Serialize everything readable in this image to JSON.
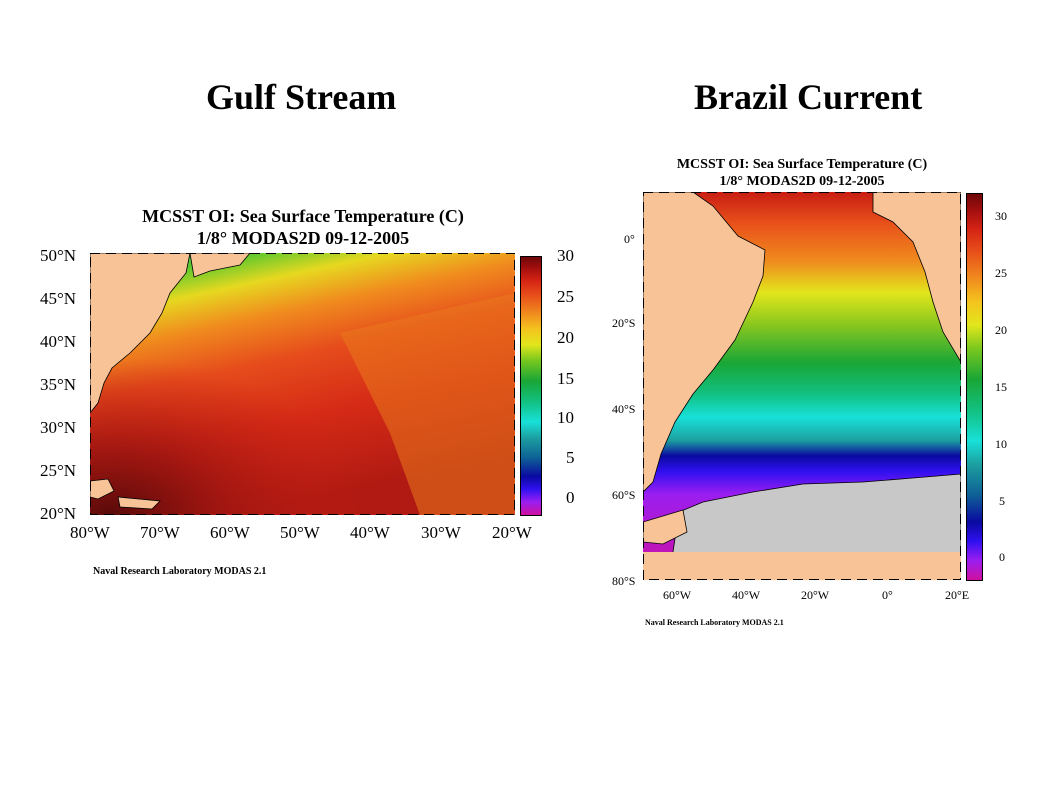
{
  "slide": {
    "title_left": "Gulf Stream",
    "title_right": "Brazil Current"
  },
  "gulf_stream": {
    "title_line1": "MCSST OI:  Sea Surface Temperature (C)",
    "title_line2": "1/8° MODAS2D 09-12-2005",
    "lat_labels": [
      "50°N",
      "45°N",
      "40°N",
      "35°N",
      "30°N",
      "25°N",
      "20°N"
    ],
    "lon_labels": [
      "80°W",
      "70°W",
      "60°W",
      "50°W",
      "40°W",
      "30°W",
      "20°W"
    ],
    "colorbar_labels": [
      "30",
      "25",
      "20",
      "15",
      "10",
      "5",
      "0"
    ],
    "credit": "Naval Research Laboratory  MODAS 2.1"
  },
  "brazil_current": {
    "title_line1": "MCSST OI:  Sea Surface Temperature (C)",
    "title_line2": "1/8° MODAS2D 09-12-2005",
    "lat_labels": [
      "0°",
      "20°S",
      "40°S",
      "60°S",
      "80°S"
    ],
    "lon_labels": [
      "60°W",
      "40°W",
      "20°W",
      "0°",
      "20°E"
    ],
    "colorbar_labels": [
      "30",
      "25",
      "20",
      "15",
      "10",
      "5",
      "0"
    ],
    "credit": "Naval Research Laboratory  MODAS 2.1"
  },
  "colors": {
    "land": "#f8c397",
    "ice": "#c8c8c8",
    "colorbar": [
      "#d0119e",
      "#9b1ef0",
      "#3010f0",
      "#0a0aa0",
      "#0e5f96",
      "#1ca0a0",
      "#18e0d8",
      "#12c080",
      "#1aa636",
      "#7ac81e",
      "#e2e61c",
      "#f4c41e",
      "#f08c1e",
      "#e8501a",
      "#d42214",
      "#a00e0e",
      "#6e0808"
    ]
  }
}
